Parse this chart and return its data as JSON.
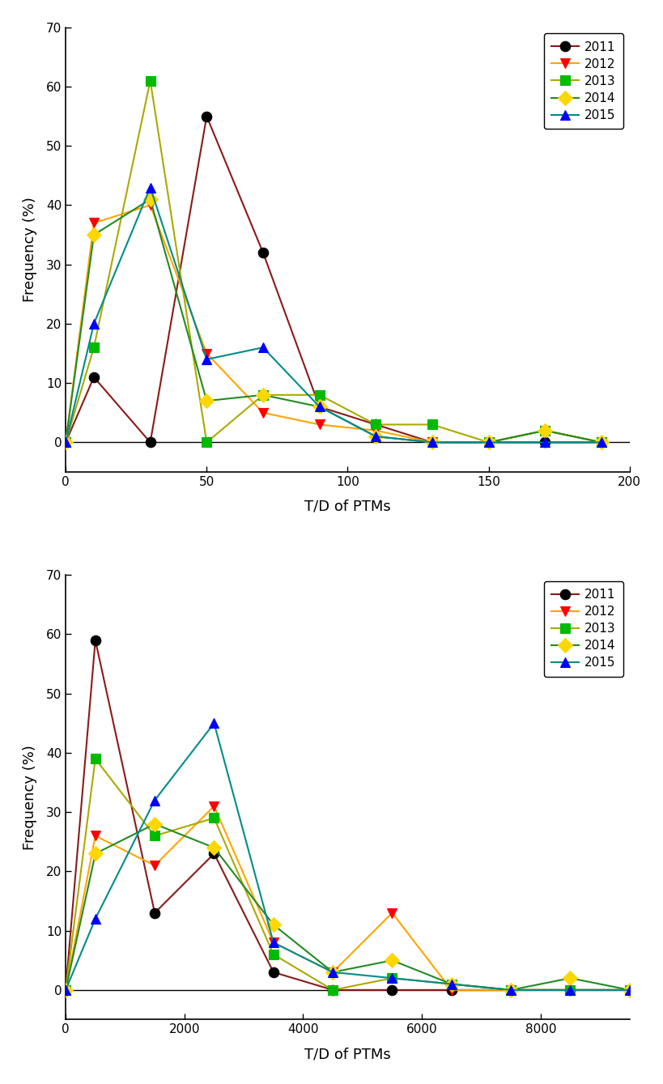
{
  "chart1": {
    "xlabel": "T/D of PTMs",
    "ylabel": "Frequency (%)",
    "xlim": [
      0,
      200
    ],
    "ylim": [
      -5,
      70
    ],
    "xticks": [
      0,
      50,
      100,
      150,
      200
    ],
    "yticks": [
      0,
      10,
      20,
      30,
      40,
      50,
      60,
      70
    ],
    "series": {
      "2011": {
        "x": [
          0,
          10,
          30,
          50,
          70,
          90,
          110,
          130,
          150,
          170,
          190
        ],
        "y": [
          0,
          11,
          0,
          55,
          32,
          6,
          3,
          0,
          0,
          0,
          0
        ],
        "line_color": "#8B1A1A",
        "marker": "o",
        "marker_facecolor": "#000000",
        "marker_edgecolor": "#000000",
        "markersize": 9
      },
      "2012": {
        "x": [
          0,
          10,
          30,
          50,
          70,
          90,
          110,
          130,
          150,
          170,
          190
        ],
        "y": [
          0,
          37,
          40,
          15,
          5,
          3,
          2,
          0,
          0,
          2,
          0
        ],
        "line_color": "#FFA500",
        "marker": "v",
        "marker_facecolor": "#FF0000",
        "marker_edgecolor": "#FF0000",
        "markersize": 9
      },
      "2013": {
        "x": [
          0,
          10,
          30,
          50,
          70,
          90,
          110,
          130,
          150,
          170,
          190
        ],
        "y": [
          0,
          16,
          61,
          0,
          8,
          8,
          3,
          3,
          0,
          2,
          0
        ],
        "line_color": "#AAAA00",
        "marker": "s",
        "marker_facecolor": "#00BB00",
        "marker_edgecolor": "#00BB00",
        "markersize": 9
      },
      "2014": {
        "x": [
          0,
          10,
          30,
          50,
          70,
          90,
          110,
          130,
          150,
          170,
          190
        ],
        "y": [
          0,
          35,
          41,
          7,
          8,
          6,
          1,
          0,
          0,
          2,
          0
        ],
        "line_color": "#228B22",
        "marker": "D",
        "marker_facecolor": "#FFD700",
        "marker_edgecolor": "#FFD700",
        "markersize": 9
      },
      "2015": {
        "x": [
          0,
          10,
          30,
          50,
          70,
          90,
          110,
          130,
          150,
          170,
          190
        ],
        "y": [
          0,
          20,
          43,
          14,
          16,
          6,
          1,
          0,
          0,
          0,
          0
        ],
        "line_color": "#008B8B",
        "marker": "^",
        "marker_facecolor": "#0000FF",
        "marker_edgecolor": "#0000FF",
        "markersize": 9
      }
    }
  },
  "chart2": {
    "xlabel": "T/D of PTMs",
    "ylabel": "Frequency (%)",
    "xlim": [
      0,
      9500
    ],
    "ylim": [
      -5,
      70
    ],
    "xticks": [
      0,
      2000,
      4000,
      6000,
      8000
    ],
    "yticks": [
      0,
      10,
      20,
      30,
      40,
      50,
      60,
      70
    ],
    "series": {
      "2011": {
        "x": [
          0,
          500,
          1500,
          2500,
          3500,
          4500,
          5500,
          6500,
          7500,
          8500,
          9500
        ],
        "y": [
          0,
          59,
          13,
          23,
          3,
          0,
          0,
          0,
          0,
          0,
          0
        ],
        "line_color": "#8B1A1A",
        "marker": "o",
        "marker_facecolor": "#000000",
        "marker_edgecolor": "#000000",
        "markersize": 9
      },
      "2012": {
        "x": [
          0,
          500,
          1500,
          2500,
          3500,
          4500,
          5500,
          6500,
          7500,
          8500,
          9500
        ],
        "y": [
          0,
          26,
          21,
          31,
          8,
          3,
          13,
          0,
          0,
          0,
          0
        ],
        "line_color": "#FFA500",
        "marker": "v",
        "marker_facecolor": "#FF0000",
        "marker_edgecolor": "#FF0000",
        "markersize": 9
      },
      "2013": {
        "x": [
          0,
          500,
          1500,
          2500,
          3500,
          4500,
          5500,
          6500,
          7500,
          8500,
          9500
        ],
        "y": [
          0,
          39,
          26,
          29,
          6,
          0,
          2,
          1,
          0,
          0,
          0
        ],
        "line_color": "#AAAA00",
        "marker": "s",
        "marker_facecolor": "#00BB00",
        "marker_edgecolor": "#00BB00",
        "markersize": 9
      },
      "2014": {
        "x": [
          0,
          500,
          1500,
          2500,
          3500,
          4500,
          5500,
          6500,
          7500,
          8500,
          9500
        ],
        "y": [
          0,
          23,
          28,
          24,
          11,
          3,
          5,
          1,
          0,
          2,
          0
        ],
        "line_color": "#228B22",
        "marker": "D",
        "marker_facecolor": "#FFD700",
        "marker_edgecolor": "#FFD700",
        "markersize": 9
      },
      "2015": {
        "x": [
          0,
          500,
          1500,
          2500,
          3500,
          4500,
          5500,
          6500,
          7500,
          8500,
          9500
        ],
        "y": [
          0,
          12,
          32,
          45,
          8,
          3,
          2,
          1,
          0,
          0,
          0
        ],
        "line_color": "#008B8B",
        "marker": "^",
        "marker_facecolor": "#0000FF",
        "marker_edgecolor": "#0000FF",
        "markersize": 9
      }
    }
  },
  "legend_order": [
    "2011",
    "2012",
    "2013",
    "2014",
    "2015"
  ],
  "background_color": "#ffffff",
  "linewidth": 1.5,
  "fontsize_label": 13,
  "fontsize_tick": 11,
  "fontsize_legend": 11
}
